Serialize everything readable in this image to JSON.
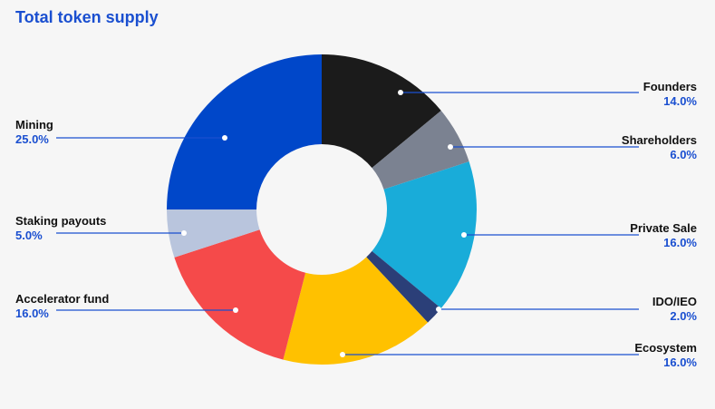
{
  "chart_data": {
    "type": "donut",
    "title": "Total token supply",
    "categories": [
      "Founders",
      "Shareholders",
      "Private Sale",
      "IDO/IEO",
      "Ecosystem",
      "Accelerator fund",
      "Staking payouts",
      "Mining"
    ],
    "values": [
      14,
      6,
      16,
      2,
      16,
      16,
      5,
      25
    ],
    "value_labels": [
      "14.0%",
      "6.0%",
      "16.0%",
      "2.0%",
      "16.0%",
      "16.0%",
      "5.0%",
      "25.0%"
    ],
    "colors": [
      "#1b1b1b",
      "#7b8291",
      "#19acd9",
      "#2b3f78",
      "#ffc100",
      "#f54a4a",
      "#b9c5dd",
      "#0047c9"
    ]
  }
}
